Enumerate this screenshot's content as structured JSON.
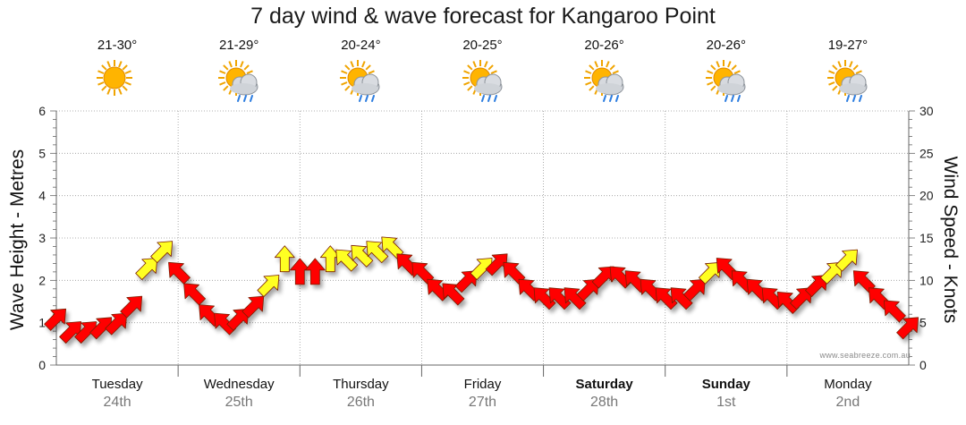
{
  "chart_data": {
    "type": "line",
    "title": "7 day wind & wave forecast for Kangaroo Point",
    "ylabel_left": "Wave Height - Metres",
    "ylabel_right": "Wind Speed - Knots",
    "ylim_left": [
      0,
      6
    ],
    "ylim_right": [
      0,
      30
    ],
    "yticks_left": [
      "0",
      "1",
      "2",
      "3",
      "4",
      "5",
      "6"
    ],
    "yticks_right": [
      "0",
      "5",
      "10",
      "15",
      "20",
      "25",
      "30"
    ],
    "grid": true,
    "days": [
      {
        "name": "Tuesday",
        "date": "24th",
        "temp": "21-30°",
        "icon": "sun-icon",
        "bold": false
      },
      {
        "name": "Wednesday",
        "date": "25th",
        "temp": "21-29°",
        "icon": "sun-cloud-rain-icon",
        "bold": false
      },
      {
        "name": "Thursday",
        "date": "26th",
        "temp": "20-24°",
        "icon": "sun-cloud-rain-icon",
        "bold": false
      },
      {
        "name": "Friday",
        "date": "27th",
        "temp": "20-25°",
        "icon": "sun-cloud-rain-icon",
        "bold": false
      },
      {
        "name": "Saturday",
        "date": "28th",
        "temp": "20-26°",
        "icon": "sun-cloud-rain-icon",
        "bold": true
      },
      {
        "name": "Sunday",
        "date": "1st",
        "temp": "20-26°",
        "icon": "sun-cloud-rain-icon",
        "bold": true
      },
      {
        "name": "Monday",
        "date": "2nd",
        "temp": "19-27°",
        "icon": "sun-cloud-rain-icon",
        "bold": false
      }
    ],
    "series": [
      {
        "name": "Wind speed (knots)",
        "unit": "knots",
        "x_hours": [
          0,
          3,
          6,
          9,
          12,
          15,
          18,
          21,
          24,
          27,
          30,
          33,
          36,
          39,
          42,
          45,
          48,
          51,
          54,
          57,
          60,
          63,
          66,
          69,
          72,
          75,
          78,
          81,
          84,
          87,
          90,
          93,
          96,
          99,
          102,
          105,
          108,
          111,
          114,
          117,
          120,
          123,
          126,
          129,
          132,
          135,
          138,
          141,
          144,
          147,
          150,
          153,
          156,
          159,
          162,
          165,
          168
        ],
        "speed": [
          5.5,
          4.0,
          4.0,
          4.5,
          5.0,
          7.0,
          11.5,
          13.5,
          11.0,
          8.5,
          6.0,
          5.0,
          5.5,
          7.0,
          9.5,
          12.5,
          11.0,
          11.0,
          12.5,
          12.5,
          13.0,
          13.5,
          14.0,
          12.0,
          11.0,
          9.0,
          8.5,
          10.0,
          11.5,
          12.0,
          11.0,
          9.0,
          8.0,
          8.0,
          8.0,
          9.0,
          10.5,
          10.5,
          10.0,
          9.0,
          8.0,
          8.0,
          9.0,
          11.0,
          11.5,
          10.0,
          9.0,
          8.0,
          7.5,
          8.0,
          9.5,
          11.0,
          12.5,
          10.0,
          8.0,
          6.5,
          4.5
        ],
        "direction_deg": [
          45,
          45,
          45,
          45,
          45,
          45,
          45,
          45,
          315,
          315,
          315,
          315,
          45,
          45,
          45,
          0,
          0,
          0,
          0,
          315,
          315,
          315,
          315,
          315,
          315,
          315,
          315,
          45,
          45,
          45,
          315,
          315,
          315,
          315,
          315,
          45,
          45,
          315,
          315,
          315,
          315,
          315,
          45,
          45,
          315,
          315,
          315,
          315,
          315,
          45,
          45,
          45,
          45,
          315,
          315,
          315,
          45
        ],
        "colors": [
          "#ff0000",
          "#ff0000",
          "#ff0000",
          "#ff0000",
          "#ff0000",
          "#ff0000",
          "#ffff22",
          "#ffff22",
          "#ff0000",
          "#ff0000",
          "#ff0000",
          "#ff0000",
          "#ff0000",
          "#ff0000",
          "#ffff22",
          "#ffff22",
          "#ff0000",
          "#ff0000",
          "#ffff22",
          "#ffff22",
          "#ffff22",
          "#ffff22",
          "#ffff22",
          "#ff0000",
          "#ff0000",
          "#ff0000",
          "#ff0000",
          "#ff0000",
          "#ffff22",
          "#ff0000",
          "#ff0000",
          "#ff0000",
          "#ff0000",
          "#ff0000",
          "#ff0000",
          "#ff0000",
          "#ff0000",
          "#ff0000",
          "#ff0000",
          "#ff0000",
          "#ff0000",
          "#ff0000",
          "#ff0000",
          "#ffff22",
          "#ff0000",
          "#ff0000",
          "#ff0000",
          "#ff0000",
          "#ff0000",
          "#ff0000",
          "#ff0000",
          "#ffff22",
          "#ffff22",
          "#ff0000",
          "#ff0000",
          "#ff0000",
          "#ff0000"
        ]
      }
    ]
  },
  "credit": "www.seabreeze.com.au",
  "colors": {
    "strong": "#ff0000",
    "moderate": "#ffff22",
    "outline": "#7a1f00",
    "grid": "#999999"
  }
}
